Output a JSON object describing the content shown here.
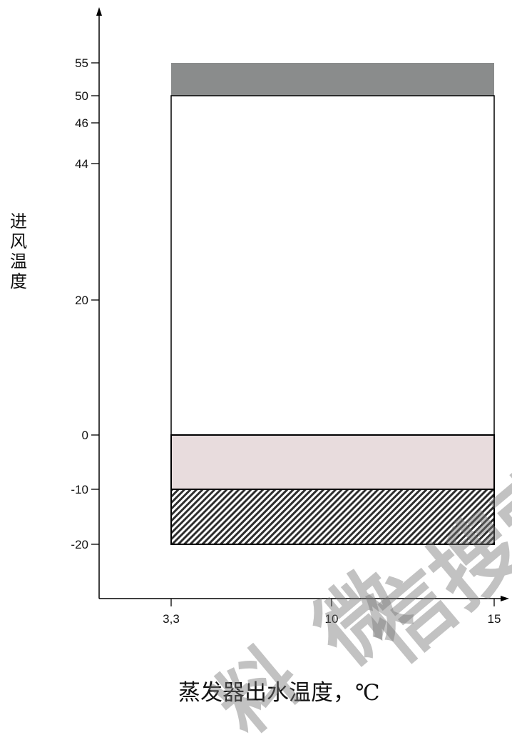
{
  "chart_data": {
    "type": "area",
    "title": "",
    "xlabel": "蒸发器出水温度，℃",
    "ylabel": [
      "进",
      "风",
      "温",
      "度"
    ],
    "x_ticks": [
      {
        "value": 3.3,
        "label": "3,3"
      },
      {
        "value": 10,
        "label": "10"
      },
      {
        "value": 15,
        "label": "15"
      }
    ],
    "y_ticks": [
      {
        "value": 55,
        "label": "55"
      },
      {
        "value": 50,
        "label": "50"
      },
      {
        "value": 46,
        "label": "46"
      },
      {
        "value": 44,
        "label": "44"
      },
      {
        "value": 20,
        "label": "20"
      },
      {
        "value": 0,
        "label": "0"
      },
      {
        "value": -10,
        "label": "-10"
      },
      {
        "value": -20,
        "label": "-20"
      }
    ],
    "regions": [
      {
        "x": [
          3.3,
          15
        ],
        "y": [
          50,
          55
        ],
        "fill": "#8a8c8c",
        "pattern": "solid"
      },
      {
        "x": [
          3.3,
          15
        ],
        "y": [
          0,
          50
        ],
        "fill": "#ffffff",
        "pattern": "outline"
      },
      {
        "x": [
          3.3,
          15
        ],
        "y": [
          -10,
          0
        ],
        "fill": "#e8dcdd",
        "pattern": "solid"
      },
      {
        "x": [
          3.3,
          15
        ],
        "y": [
          -20,
          -10
        ],
        "fill": "#3a3a3a",
        "pattern": "hatch"
      }
    ],
    "xlim": [
      0,
      15.5
    ],
    "ylim": [
      -30,
      62
    ],
    "grid": false
  },
  "watermark": {
    "text_1": "料",
    "text_2": "微",
    "text_3": "信搜索"
  }
}
